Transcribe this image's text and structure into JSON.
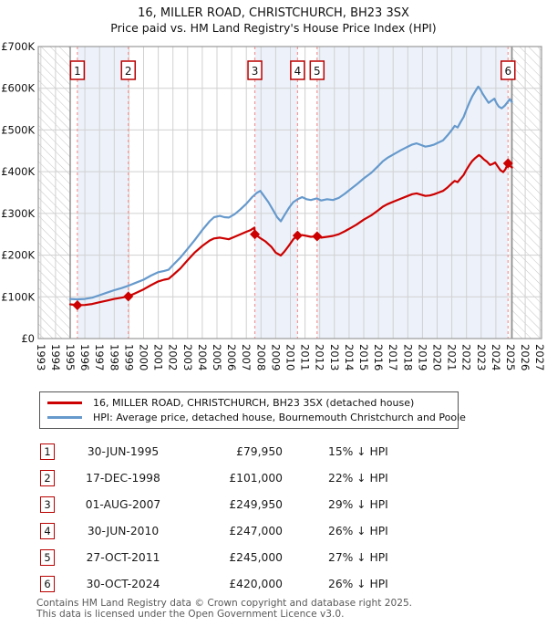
{
  "title": "16, MILLER ROAD, CHRISTCHURCH, BH23 3SX",
  "subtitle": "Price paid vs. HM Land Registry's House Price Index (HPI)",
  "colors": {
    "property_line": "#cc0000",
    "hpi_line": "#6699cc",
    "sale_dashed_line": "#f59595",
    "sale_box_border": "#bb0000",
    "owned_band_fill": "#edf2fa",
    "gridline": "#d0d0d0",
    "plot_border": "#9a9a9a",
    "hatch_line": "#c4c4c4",
    "data_edge_line": "#808080",
    "footer_text": "#595959"
  },
  "legend": {
    "items": [
      {
        "label": "16, MILLER ROAD, CHRISTCHURCH, BH23 3SX (detached house)",
        "color": "#cc0000"
      },
      {
        "label": "HPI: Average price, detached house, Bournemouth Christchurch and Poole",
        "color": "#6699cc"
      }
    ]
  },
  "chart_data": {
    "type": "line",
    "title": "16, MILLER ROAD, CHRISTCHURCH, BH23 3SX",
    "subtitle": "Price paid vs. HM Land Registry's House Price Index (HPI)",
    "x_axis": {
      "start": 1993,
      "end": 2027,
      "tick_labels": [
        "1993",
        "1994",
        "1995",
        "1996",
        "1997",
        "1998",
        "1999",
        "2000",
        "2001",
        "2002",
        "2003",
        "2004",
        "2005",
        "2006",
        "2007",
        "2008",
        "2009",
        "2010",
        "2011",
        "2012",
        "2013",
        "2014",
        "2015",
        "2016",
        "2017",
        "2018",
        "2019",
        "2020",
        "2021",
        "2022",
        "2023",
        "2024",
        "2025",
        "2026",
        "2027"
      ]
    },
    "y_axis": {
      "min": 0,
      "max": 700000,
      "unit": "GBP",
      "tick_labels": [
        "£0",
        "£100K",
        "£200K",
        "£300K",
        "£400K",
        "£500K",
        "£600K",
        "£700K"
      ]
    },
    "grid": true,
    "legend_position": "below",
    "data_range": {
      "start_year": 1995.0,
      "end_year": 2025.1
    },
    "hatched_regions_years": [
      [
        1993,
        1995.0
      ],
      [
        2025.1,
        2027
      ]
    ],
    "owned_shaded_band_sale_pairs": [
      [
        1,
        2
      ],
      [
        3,
        4
      ],
      [
        5,
        6
      ]
    ],
    "sales": [
      {
        "num": "1",
        "date": "30-JUN-1995",
        "price": "£79,950",
        "below_hpi": "15% ↓ HPI",
        "year": 1995.49,
        "price_k": 79.95
      },
      {
        "num": "2",
        "date": "17-DEC-1998",
        "price": "£101,000",
        "below_hpi": "22% ↓ HPI",
        "year": 1998.96,
        "price_k": 101
      },
      {
        "num": "3",
        "date": "01-AUG-2007",
        "price": "£249,950",
        "below_hpi": "29% ↓ HPI",
        "year": 2007.58,
        "price_k": 249.95
      },
      {
        "num": "4",
        "date": "30-JUN-2010",
        "price": "£247,000",
        "below_hpi": "26% ↓ HPI",
        "year": 2010.49,
        "price_k": 247
      },
      {
        "num": "5",
        "date": "27-OCT-2011",
        "price": "£245,000",
        "below_hpi": "27% ↓ HPI",
        "year": 2011.82,
        "price_k": 245
      },
      {
        "num": "6",
        "date": "30-OCT-2024",
        "price": "£420,000",
        "below_hpi": "26% ↓ HPI",
        "year": 2024.83,
        "price_k": 420
      }
    ],
    "series": [
      {
        "name": "HPI: Average price, detached house, Bournemouth Christchurch and Poole",
        "color": "#6699cc",
        "points_year_valueK": [
          [
            1995.0,
            95
          ],
          [
            1995.5,
            94
          ],
          [
            1996.0,
            95
          ],
          [
            1996.5,
            98
          ],
          [
            1997.0,
            104
          ],
          [
            1997.5,
            110
          ],
          [
            1998.0,
            116
          ],
          [
            1998.5,
            121
          ],
          [
            1999.0,
            127
          ],
          [
            1999.5,
            134
          ],
          [
            2000.0,
            141
          ],
          [
            2000.5,
            151
          ],
          [
            2001.0,
            159
          ],
          [
            2001.4,
            162
          ],
          [
            2001.7,
            165
          ],
          [
            2002.0,
            176
          ],
          [
            2002.5,
            194
          ],
          [
            2003.0,
            215
          ],
          [
            2003.5,
            237
          ],
          [
            2004.0,
            260
          ],
          [
            2004.5,
            281
          ],
          [
            2004.8,
            291
          ],
          [
            2005.2,
            294
          ],
          [
            2005.5,
            291
          ],
          [
            2005.8,
            290
          ],
          [
            2006.2,
            298
          ],
          [
            2006.6,
            310
          ],
          [
            2007.0,
            323
          ],
          [
            2007.4,
            339
          ],
          [
            2007.7,
            349
          ],
          [
            2007.95,
            354
          ],
          [
            2008.2,
            342
          ],
          [
            2008.5,
            327
          ],
          [
            2008.8,
            309
          ],
          [
            2009.1,
            291
          ],
          [
            2009.35,
            281
          ],
          [
            2009.6,
            296
          ],
          [
            2009.9,
            313
          ],
          [
            2010.2,
            327
          ],
          [
            2010.5,
            334
          ],
          [
            2010.8,
            339
          ],
          [
            2011.1,
            334
          ],
          [
            2011.4,
            332
          ],
          [
            2011.8,
            336
          ],
          [
            2012.1,
            331
          ],
          [
            2012.5,
            334
          ],
          [
            2012.9,
            332
          ],
          [
            2013.3,
            337
          ],
          [
            2013.7,
            347
          ],
          [
            2014.1,
            358
          ],
          [
            2014.5,
            369
          ],
          [
            2015.0,
            384
          ],
          [
            2015.5,
            397
          ],
          [
            2016.0,
            414
          ],
          [
            2016.3,
            425
          ],
          [
            2016.6,
            433
          ],
          [
            2017.0,
            441
          ],
          [
            2017.5,
            451
          ],
          [
            2018.0,
            460
          ],
          [
            2018.3,
            465
          ],
          [
            2018.6,
            468
          ],
          [
            2018.9,
            464
          ],
          [
            2019.2,
            460
          ],
          [
            2019.5,
            462
          ],
          [
            2019.8,
            465
          ],
          [
            2020.1,
            470
          ],
          [
            2020.4,
            475
          ],
          [
            2020.7,
            487
          ],
          [
            2021.0,
            500
          ],
          [
            2021.2,
            510
          ],
          [
            2021.4,
            506
          ],
          [
            2021.6,
            519
          ],
          [
            2021.8,
            531
          ],
          [
            2022.0,
            549
          ],
          [
            2022.2,
            566
          ],
          [
            2022.4,
            581
          ],
          [
            2022.6,
            593
          ],
          [
            2022.8,
            604
          ],
          [
            2022.95,
            597
          ],
          [
            2023.1,
            587
          ],
          [
            2023.3,
            576
          ],
          [
            2023.5,
            565
          ],
          [
            2023.7,
            570
          ],
          [
            2023.9,
            575
          ],
          [
            2024.05,
            564
          ],
          [
            2024.2,
            556
          ],
          [
            2024.4,
            552
          ],
          [
            2024.6,
            558
          ],
          [
            2024.8,
            567
          ],
          [
            2024.95,
            574
          ],
          [
            2025.1,
            567
          ]
        ]
      },
      {
        "name": "16, MILLER ROAD, CHRISTCHURCH, BH23 3SX (detached house)",
        "color": "#cc0000",
        "points_year_valueK": [
          [
            1995.0,
            82
          ],
          [
            1995.49,
            80
          ],
          [
            1996.0,
            80.5
          ],
          [
            1996.5,
            83
          ],
          [
            1997.0,
            87
          ],
          [
            1997.5,
            91
          ],
          [
            1998.0,
            95
          ],
          [
            1998.5,
            98
          ],
          [
            1998.96,
            101
          ],
          [
            1999.4,
            108
          ],
          [
            2000.0,
            118
          ],
          [
            2000.5,
            128
          ],
          [
            2001.0,
            137
          ],
          [
            2001.4,
            141
          ],
          [
            2001.7,
            143
          ],
          [
            2002.0,
            152
          ],
          [
            2002.5,
            168
          ],
          [
            2003.0,
            188
          ],
          [
            2003.5,
            207
          ],
          [
            2004.0,
            222
          ],
          [
            2004.5,
            235
          ],
          [
            2004.8,
            240
          ],
          [
            2005.2,
            242
          ],
          [
            2005.5,
            240
          ],
          [
            2005.8,
            238
          ],
          [
            2006.2,
            244
          ],
          [
            2006.6,
            250
          ],
          [
            2007.0,
            256
          ],
          [
            2007.3,
            260
          ],
          [
            2007.55,
            266
          ],
          [
            2007.58,
            249.95
          ],
          [
            2007.9,
            242
          ],
          [
            2008.3,
            233
          ],
          [
            2008.7,
            220
          ],
          [
            2009.0,
            206
          ],
          [
            2009.35,
            199
          ],
          [
            2009.6,
            209
          ],
          [
            2009.9,
            223
          ],
          [
            2010.2,
            238
          ],
          [
            2010.49,
            247
          ],
          [
            2010.8,
            248
          ],
          [
            2011.1,
            246
          ],
          [
            2011.4,
            244
          ],
          [
            2011.82,
            245
          ],
          [
            2012.1,
            242
          ],
          [
            2012.5,
            244
          ],
          [
            2012.9,
            246
          ],
          [
            2013.3,
            250
          ],
          [
            2013.7,
            257
          ],
          [
            2014.1,
            265
          ],
          [
            2014.5,
            273
          ],
          [
            2015.0,
            285
          ],
          [
            2015.5,
            295
          ],
          [
            2016.0,
            308
          ],
          [
            2016.3,
            316
          ],
          [
            2016.6,
            322
          ],
          [
            2017.0,
            328
          ],
          [
            2017.5,
            335
          ],
          [
            2018.0,
            342
          ],
          [
            2018.3,
            346
          ],
          [
            2018.6,
            348
          ],
          [
            2018.9,
            345
          ],
          [
            2019.2,
            342
          ],
          [
            2019.5,
            343
          ],
          [
            2019.8,
            346
          ],
          [
            2020.1,
            350
          ],
          [
            2020.4,
            354
          ],
          [
            2020.7,
            362
          ],
          [
            2021.0,
            372
          ],
          [
            2021.2,
            378
          ],
          [
            2021.4,
            375
          ],
          [
            2021.6,
            384
          ],
          [
            2021.8,
            392
          ],
          [
            2022.0,
            405
          ],
          [
            2022.2,
            416
          ],
          [
            2022.4,
            426
          ],
          [
            2022.6,
            433
          ],
          [
            2022.85,
            440
          ],
          [
            2023.0,
            436
          ],
          [
            2023.2,
            429
          ],
          [
            2023.4,
            424
          ],
          [
            2023.6,
            416
          ],
          [
            2023.8,
            419
          ],
          [
            2023.95,
            422
          ],
          [
            2024.1,
            414
          ],
          [
            2024.3,
            404
          ],
          [
            2024.5,
            399
          ],
          [
            2024.65,
            406
          ],
          [
            2024.83,
            420
          ],
          [
            2025.0,
            413
          ],
          [
            2025.1,
            410
          ]
        ]
      }
    ]
  },
  "table": {
    "columns": [
      "sale-number",
      "date",
      "price",
      "relation-to-hpi"
    ]
  },
  "footer": {
    "line1": "Contains HM Land Registry data © Crown copyright and database right 2025.",
    "line2": "This data is licensed under the Open Government Licence v3.0."
  }
}
